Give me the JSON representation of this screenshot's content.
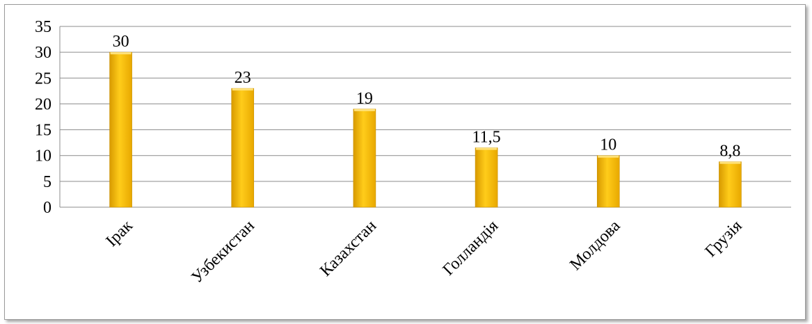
{
  "chart_data": {
    "type": "bar",
    "categories": [
      "Ірак",
      "Узбекистан",
      "Казахстан",
      "Голландія",
      "Молдова",
      "Грузія"
    ],
    "values": [
      30,
      23,
      19,
      11.5,
      10,
      8.8
    ],
    "data_labels": [
      "30",
      "23",
      "19",
      "11,5",
      "10",
      "8,8"
    ],
    "title": "",
    "xlabel": "",
    "ylabel": "",
    "ylim": [
      0,
      35
    ],
    "yticks": [
      0,
      5,
      10,
      15,
      20,
      25,
      30,
      35
    ],
    "ytick_labels": [
      "0",
      "5",
      "10",
      "15",
      "20",
      "25",
      "30",
      "35"
    ],
    "grid": true,
    "legend": "none",
    "bar_color": "#FFC000",
    "x_label_rotation_deg": -45
  }
}
